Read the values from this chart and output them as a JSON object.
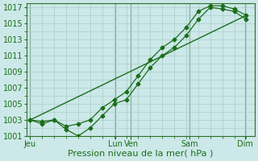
{
  "title": "",
  "xlabel": "Pression niveau de la mer( hPa )",
  "bg_color": "#cce8e8",
  "grid_color": "#aacccc",
  "line_color": "#1a6e1a",
  "ylim": [
    1001,
    1017.5
  ],
  "ytick_vals": [
    1001,
    1003,
    1005,
    1007,
    1009,
    1011,
    1013,
    1015,
    1017
  ],
  "xlim": [
    0,
    9.5
  ],
  "day_labels": [
    "Jeu",
    "Lun",
    "Ven",
    "Sam",
    "Dim"
  ],
  "day_positions": [
    0.15,
    3.7,
    4.35,
    6.8,
    9.1
  ],
  "minor_x_positions": [
    0.15,
    0.65,
    1.15,
    1.65,
    2.15,
    2.65,
    3.15,
    3.65,
    4.15,
    4.65,
    5.15,
    5.65,
    6.15,
    6.65,
    7.15,
    7.65,
    8.15,
    8.65,
    9.15
  ],
  "vline_positions": [
    0.15,
    3.7,
    4.35,
    6.8,
    9.1
  ],
  "line1_x": [
    0.15,
    0.65,
    1.15,
    1.65,
    2.15,
    2.65,
    3.15,
    3.65,
    4.15,
    4.65,
    5.15,
    5.65,
    6.15,
    6.65,
    7.15,
    7.65,
    8.15,
    8.65,
    9.15
  ],
  "line1_y": [
    1003.0,
    1002.5,
    1003.0,
    1001.8,
    1001.0,
    1002.0,
    1003.5,
    1005.0,
    1005.5,
    1007.5,
    1009.5,
    1011.0,
    1012.0,
    1013.5,
    1015.5,
    1017.0,
    1016.8,
    1016.5,
    1015.5
  ],
  "line2_x": [
    0.15,
    0.65,
    1.15,
    1.65,
    2.15,
    2.65,
    3.15,
    3.65,
    4.15,
    4.65,
    5.15,
    5.65,
    6.15,
    6.65,
    7.15,
    7.65,
    8.15,
    8.65,
    9.15
  ],
  "line2_y": [
    1003.0,
    1002.8,
    1003.0,
    1002.2,
    1002.5,
    1003.0,
    1004.5,
    1005.5,
    1006.5,
    1008.5,
    1010.5,
    1012.0,
    1013.0,
    1014.5,
    1016.5,
    1017.2,
    1017.2,
    1016.8,
    1016.0
  ],
  "trend_x": [
    0.15,
    9.15
  ],
  "trend_y": [
    1003.0,
    1016.0
  ],
  "xlabel_fontsize": 8,
  "tick_fontsize": 7,
  "marker_size": 2.5
}
